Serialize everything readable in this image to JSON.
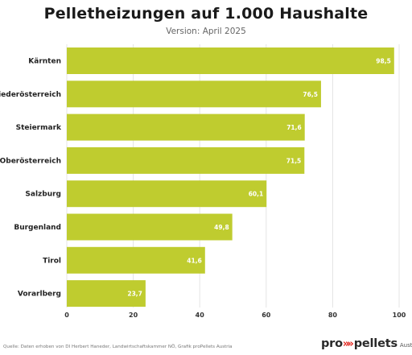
{
  "header": {
    "title": "Pelletheizungen auf 1.000 Haushalte",
    "subtitle": "Version: April 2025"
  },
  "footer": {
    "source": "Quelle: Daten erhoben von DI Herbert Haneder, Landwirtschaftskammer NÖ, Grafik proPellets Austria",
    "logo_pro": "pro",
    "logo_arrows": "»",
    "logo_pellets": "pellets",
    "logo_country": "Austria"
  },
  "colors": {
    "bar": "#bfcc2f",
    "grid": "#e4e4e4",
    "logo_accent": "#e2241c"
  },
  "chart_data": {
    "type": "bar",
    "orientation": "horizontal",
    "title": "Pelletheizungen auf 1.000 Haushalte",
    "subtitle": "Version: April 2025",
    "categories": [
      "Kärnten",
      "Niederösterreich",
      "Steiermark",
      "Oberösterreich",
      "Salzburg",
      "Burgenland",
      "Tirol",
      "Vorarlberg"
    ],
    "values": [
      98.5,
      76.5,
      71.6,
      71.5,
      60.1,
      49.8,
      41.6,
      23.7
    ],
    "value_labels": [
      "98,5",
      "76,5",
      "71,6",
      "71,5",
      "60,1",
      "49,8",
      "41,6",
      "23,7"
    ],
    "xlim": [
      0,
      100
    ],
    "x_ticks": [
      "0",
      "20",
      "40",
      "60",
      "80",
      "100"
    ],
    "grid": true
  }
}
